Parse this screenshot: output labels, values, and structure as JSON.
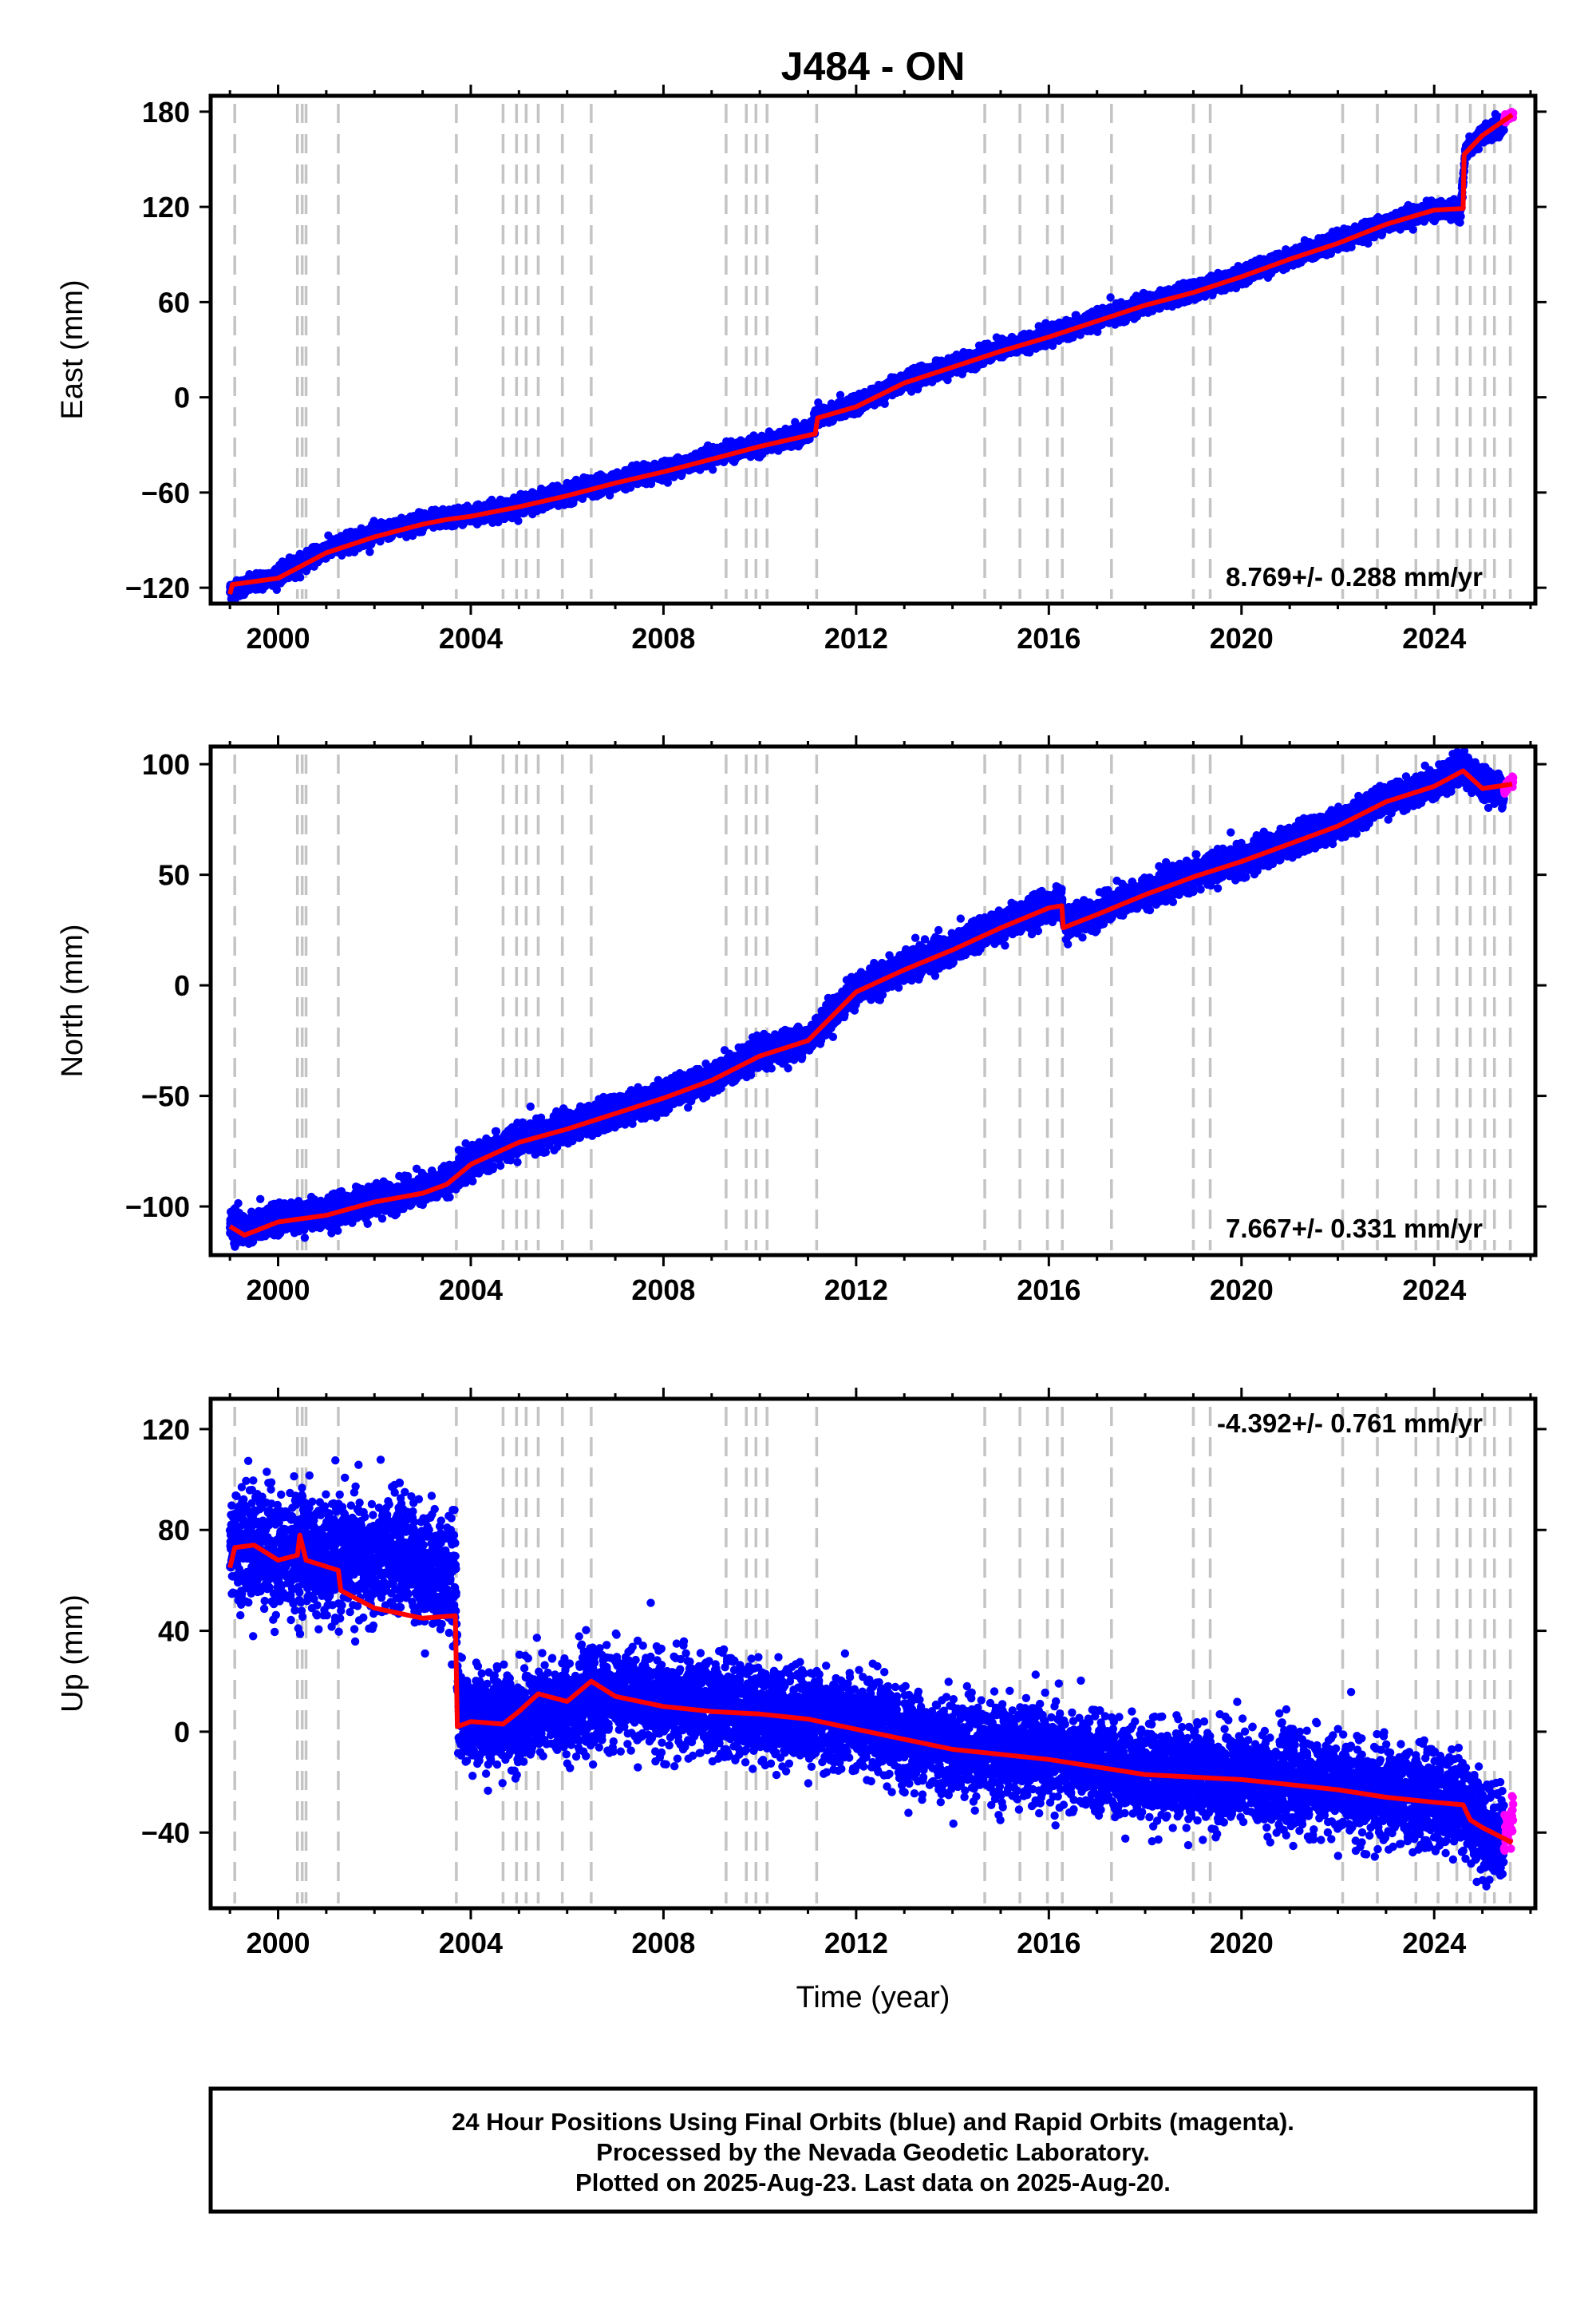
{
  "chart_data": [
    {
      "type": "scatter",
      "title": "J484 - ON",
      "xlabel": "",
      "ylabel": "East (mm)",
      "xlim": [
        1998.6,
        2026.1
      ],
      "ylim": [
        -130,
        190
      ],
      "x_ticks": [
        2000,
        2004,
        2008,
        2012,
        2016,
        2020,
        2024
      ],
      "x_tick_labels": [
        "2000",
        "2004",
        "2008",
        "2012",
        "2016",
        "2020",
        "2024"
      ],
      "y_ticks": [
        -120,
        -60,
        0,
        60,
        120,
        180
      ],
      "y_tick_labels": [
        "−120",
        "−60",
        "0",
        "60",
        "120",
        "180"
      ],
      "rate_label": "8.769+/- 0.288 mm/yr",
      "rate_position": "bottom-right",
      "noise": 2.6,
      "series": [
        {
          "name": "Final Orbits",
          "color": "#0000ff",
          "x": [
            1999.0,
            1999.5,
            2000.0,
            2000.5,
            2001.0,
            2002.0,
            2003.0,
            2003.5,
            2004.0,
            2005.0,
            2006.0,
            2007.0,
            2008.0,
            2009.0,
            2010.0,
            2011.0,
            2011.2,
            2012.0,
            2013.0,
            2014.0,
            2015.0,
            2016.0,
            2017.0,
            2018.0,
            2019.0,
            2020.0,
            2021.0,
            2022.0,
            2023.0,
            2024.0,
            2024.55,
            2024.65,
            2025.0,
            2025.45
          ],
          "y": [
            -122,
            -117,
            -112,
            -104,
            -96,
            -86,
            -78,
            -76,
            -74,
            -68,
            -61,
            -53,
            -46,
            -37,
            -30,
            -23,
            -12,
            -5,
            10,
            20,
            30,
            39,
            49,
            59,
            67,
            77,
            88,
            98,
            110,
            118,
            118,
            155,
            165,
            172
          ]
        },
        {
          "name": "Rapid Orbits",
          "color": "#ff00ff",
          "x": [
            2025.45,
            2025.55,
            2025.64
          ],
          "y": [
            174,
            177,
            179
          ]
        }
      ],
      "model": {
        "name": "model fit",
        "color": "#ff0000",
        "x": [
          1999.0,
          1999.05,
          2000.0,
          2000.5,
          2001.0,
          2002.0,
          2003.0,
          2003.5,
          2004.0,
          2005.0,
          2006.0,
          2007.0,
          2008.0,
          2009.0,
          2010.0,
          2011.15,
          2011.2,
          2012.0,
          2013.0,
          2014.0,
          2015.0,
          2016.0,
          2017.0,
          2018.0,
          2019.0,
          2020.0,
          2021.0,
          2022.0,
          2023.0,
          2024.0,
          2024.6,
          2024.62,
          2025.0,
          2025.62
        ],
        "y": [
          -124,
          -118,
          -114,
          -106,
          -98,
          -88,
          -80,
          -77,
          -75,
          -69,
          -62,
          -54,
          -47,
          -39,
          -31,
          -23,
          -13,
          -6,
          9,
          19,
          29,
          38,
          48,
          58,
          66,
          76,
          87,
          97,
          109,
          118,
          119,
          153,
          165,
          178
        ]
      },
      "offset_lines_x": [
        1999.1,
        2000.4,
        2000.5,
        2000.58,
        2001.25,
        2003.7,
        2004.67,
        2004.95,
        2005.15,
        2005.4,
        2005.9,
        2006.5,
        2009.3,
        2009.72,
        2009.92,
        2010.15,
        2011.18,
        2014.67,
        2015.4,
        2015.97,
        2016.28,
        2017.3,
        2019.0,
        2019.35,
        2022.1,
        2022.82,
        2023.62,
        2024.08,
        2024.47,
        2024.75,
        2025.05,
        2025.25,
        2025.58
      ]
    },
    {
      "type": "scatter",
      "title": "",
      "xlabel": "",
      "ylabel": "North (mm)",
      "xlim": [
        1998.6,
        2026.1
      ],
      "ylim": [
        -122,
        108
      ],
      "x_ticks": [
        2000,
        2004,
        2008,
        2012,
        2016,
        2020,
        2024
      ],
      "x_tick_labels": [
        "2000",
        "2004",
        "2008",
        "2012",
        "2016",
        "2020",
        "2024"
      ],
      "y_ticks": [
        -100,
        -50,
        0,
        50,
        100
      ],
      "y_tick_labels": [
        "−100",
        "−50",
        "0",
        "50",
        "100"
      ],
      "rate_label": "7.667+/- 0.331 mm/yr",
      "rate_position": "bottom-right",
      "noise": 3.2,
      "series": [
        {
          "name": "Final Orbits",
          "color": "#0000ff",
          "x": [
            1999.0,
            1999.3,
            2000.0,
            2001.0,
            2002.0,
            2003.0,
            2003.5,
            2004.0,
            2005.0,
            2006.0,
            2007.0,
            2008.0,
            2009.0,
            2010.0,
            2011.0,
            2012.0,
            2013.0,
            2014.0,
            2015.0,
            2016.0,
            2016.28,
            2016.32,
            2017.0,
            2018.0,
            2019.0,
            2020.0,
            2021.0,
            2022.0,
            2023.0,
            2024.0,
            2024.6,
            2025.0,
            2025.45
          ],
          "y": [
            -108,
            -110,
            -106,
            -103,
            -97,
            -93,
            -88,
            -80,
            -70,
            -64,
            -57,
            -50,
            -42,
            -31,
            -24,
            -2,
            8,
            17,
            27,
            36,
            37,
            28,
            33,
            42,
            50,
            57,
            65,
            73,
            84,
            91,
            98,
            92,
            88
          ]
        },
        {
          "name": "Rapid Orbits",
          "color": "#ff00ff",
          "x": [
            2025.45,
            2025.55,
            2025.64
          ],
          "y": [
            88,
            91,
            93
          ]
        }
      ],
      "model": {
        "name": "model fit",
        "color": "#ff0000",
        "x": [
          1999.0,
          1999.3,
          2000.0,
          2001.0,
          2002.0,
          2003.0,
          2003.5,
          2004.0,
          2005.0,
          2006.0,
          2007.0,
          2008.0,
          2009.0,
          2010.0,
          2011.0,
          2012.0,
          2013.0,
          2014.0,
          2015.0,
          2016.0,
          2016.27,
          2016.3,
          2017.0,
          2018.0,
          2019.0,
          2020.0,
          2021.0,
          2022.0,
          2023.0,
          2024.0,
          2024.6,
          2025.0,
          2025.62
        ],
        "y": [
          -109,
          -113,
          -107,
          -104,
          -98,
          -94,
          -90,
          -81,
          -71,
          -65,
          -58,
          -51,
          -43,
          -32,
          -25,
          -3,
          7,
          16,
          26,
          35,
          36,
          26,
          32,
          41,
          49,
          56,
          64,
          72,
          83,
          90,
          97,
          89,
          91
        ]
      },
      "offset_lines_x": [
        1999.1,
        2000.4,
        2000.5,
        2000.58,
        2001.25,
        2003.7,
        2004.67,
        2004.95,
        2005.15,
        2005.4,
        2005.9,
        2006.5,
        2009.3,
        2009.72,
        2009.92,
        2010.15,
        2011.18,
        2014.67,
        2015.4,
        2015.97,
        2016.28,
        2017.3,
        2019.0,
        2019.35,
        2022.1,
        2022.82,
        2023.62,
        2024.08,
        2024.47,
        2024.75,
        2025.05,
        2025.25,
        2025.58
      ]
    },
    {
      "type": "scatter",
      "title": "",
      "xlabel": "Time (year)",
      "ylabel": "Up (mm)",
      "xlim": [
        1998.6,
        2026.1
      ],
      "ylim": [
        -70,
        132
      ],
      "x_ticks": [
        2000,
        2004,
        2008,
        2012,
        2016,
        2020,
        2024
      ],
      "x_tick_labels": [
        "2000",
        "2004",
        "2008",
        "2012",
        "2016",
        "2020",
        "2024"
      ],
      "y_ticks": [
        -40,
        0,
        40,
        80,
        120
      ],
      "y_tick_labels": [
        "−40",
        "0",
        "40",
        "80",
        "120"
      ],
      "rate_label": "-4.392+/- 0.761 mm/yr",
      "rate_position": "top-right",
      "noise": 9,
      "series": [
        {
          "name": "Final Orbits",
          "color": "#0000ff",
          "x": [
            1999.0,
            1999.5,
            2000.0,
            2000.5,
            2001.0,
            2001.5,
            2002.0,
            2002.5,
            2003.0,
            2003.5,
            2003.68,
            2003.75,
            2004.0,
            2005.0,
            2006.0,
            2007.0,
            2008.0,
            2009.0,
            2010.0,
            2011.0,
            2012.0,
            2013.0,
            2014.0,
            2015.0,
            2016.0,
            2017.0,
            2018.0,
            2019.0,
            2020.0,
            2021.0,
            2022.0,
            2023.0,
            2024.0,
            2024.6,
            2025.0,
            2025.45
          ],
          "y": [
            74,
            76,
            69,
            73,
            66,
            70,
            66,
            72,
            66,
            62,
            60,
            8,
            4,
            6,
            10,
            14,
            12,
            10,
            8,
            6,
            3,
            -2,
            -6,
            -8,
            -10,
            -13,
            -16,
            -17,
            -18,
            -20,
            -22,
            -25,
            -27,
            -28,
            -38,
            -42
          ]
        },
        {
          "name": "Rapid Orbits",
          "color": "#ff00ff",
          "x": [
            2025.45,
            2025.55,
            2025.64
          ],
          "y": [
            -42,
            -36,
            -30
          ]
        }
      ],
      "model": {
        "name": "model fit",
        "color": "#ff0000",
        "x": [
          1999.0,
          1999.1,
          1999.5,
          2000.0,
          2000.4,
          2000.45,
          2000.58,
          2001.25,
          2001.3,
          2002.0,
          2003.0,
          2003.68,
          2003.72,
          2004.0,
          2004.67,
          2005.0,
          2005.4,
          2006.0,
          2006.5,
          2007.0,
          2008.0,
          2009.0,
          2010.0,
          2011.0,
          2012.0,
          2013.0,
          2014.0,
          2015.0,
          2016.0,
          2017.0,
          2018.0,
          2019.0,
          2020.0,
          2021.0,
          2022.0,
          2023.0,
          2024.0,
          2024.6,
          2024.75,
          2025.0,
          2025.62
        ],
        "y": [
          65,
          73,
          74,
          68,
          70,
          78,
          68,
          64,
          56,
          49,
          45,
          46,
          2,
          4,
          3,
          8,
          15,
          12,
          20,
          14,
          10,
          8,
          7,
          5,
          1,
          -3,
          -7,
          -9,
          -11,
          -14,
          -17,
          -18,
          -19,
          -21,
          -23,
          -26,
          -28,
          -29,
          -35,
          -38,
          -44
        ]
      },
      "offset_lines_x": [
        1999.1,
        2000.4,
        2000.5,
        2000.58,
        2001.25,
        2003.7,
        2004.67,
        2004.95,
        2005.15,
        2005.4,
        2005.9,
        2006.5,
        2009.3,
        2009.72,
        2009.92,
        2010.15,
        2011.18,
        2014.67,
        2015.4,
        2015.97,
        2016.28,
        2017.3,
        2019.0,
        2019.35,
        2022.1,
        2022.82,
        2023.62,
        2024.08,
        2024.47,
        2024.75,
        2025.05,
        2025.25,
        2025.58
      ]
    }
  ],
  "footer": {
    "line1": "24 Hour Positions Using Final Orbits (blue) and Rapid Orbits (magenta).",
    "line2": "Processed by the Nevada Geodetic Laboratory.",
    "line3": "Plotted on 2025-Aug-23. Last data on 2025-Aug-20."
  }
}
